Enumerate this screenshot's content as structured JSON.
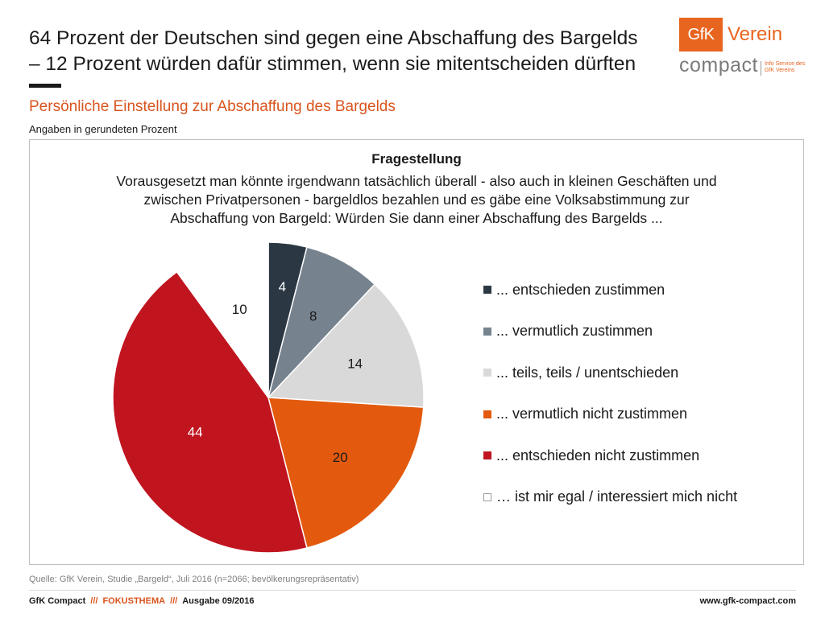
{
  "header": {
    "headline_line1": "64 Prozent der Deutschen sind gegen eine Abschaffung des Bargelds",
    "headline_line2": "– 12 Prozent würden dafür stimmen, wenn sie mitentscheiden dürften",
    "logo": {
      "box_text": "GfK",
      "verein": "Verein",
      "compact": "compact",
      "info_line1": "Info Service des",
      "info_line2": "GfK Vereins",
      "brand_color": "#e8651f"
    }
  },
  "subtitle": "Persönliche Einstellung zur Abschaffung des Bargelds",
  "note": "Angaben in gerundeten Prozent",
  "question": {
    "title": "Fragestellung",
    "line1": "Vorausgesetzt man könnte irgendwann tatsächlich überall - also auch in kleinen Geschäften und",
    "line2": "zwischen Privatpersonen - bargeldlos bezahlen und es gäbe eine Volksabstimmung zur",
    "line3": "Abschaffung von Bargeld: Würden Sie dann einer Abschaffung des Bargelds ..."
  },
  "chart_data": {
    "type": "pie",
    "title": "Persönliche Einstellung zur Abschaffung des Bargelds",
    "unit": "Angaben in gerundeten Prozent",
    "legend_placement": "right",
    "start_angle": "12 o'clock, clockwise",
    "slices": [
      {
        "label": "... entschieden zustimmen",
        "value": 4,
        "color": "#2b3843",
        "label_color": "#ffffff"
      },
      {
        "label": "... vermutlich zustimmen",
        "value": 8,
        "color": "#76838f",
        "label_color": "#1a1a1a"
      },
      {
        "label": "... teils, teils / unentschieden",
        "value": 14,
        "color": "#d9d9d9",
        "label_color": "#1a1a1a"
      },
      {
        "label": "... vermutlich nicht zustimmen",
        "value": 20,
        "color": "#e35a0e",
        "label_color": "#1a1a1a"
      },
      {
        "label": "... entschieden nicht zustimmen",
        "value": 44,
        "color": "#c0141f",
        "label_color": "#ffffff"
      },
      {
        "label": "… ist mir egal / interessiert mich nicht",
        "value": 10,
        "color": "#ffffff",
        "label_color": "#1a1a1a"
      }
    ]
  },
  "source": "Quelle: GfK Verein, Studie „Bargeld“, Juli 2016 (n=2066; bevölkerungsrepräsentativ)",
  "footer": {
    "brand": "GfK Compact",
    "sep": "///",
    "section": "FOKUSTHEMA",
    "issue": "Ausgabe 09/2016",
    "url": "www.gfk-compact.com"
  }
}
